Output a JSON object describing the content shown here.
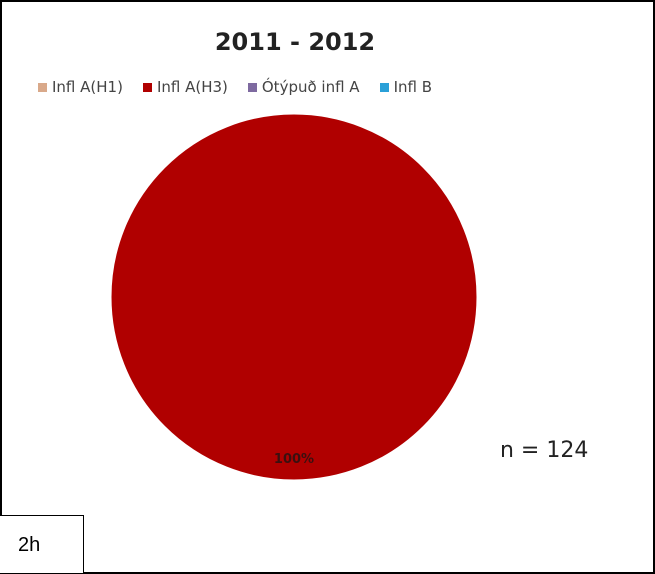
{
  "chart_data": {
    "type": "pie",
    "title": "2011 - 2012",
    "categories": [
      "Infl A(H1)",
      "Infl A(H3)",
      "Ótýpuð infl A",
      "Infl B"
    ],
    "values": [
      0,
      100,
      0,
      0
    ],
    "colors": [
      "#d9a98a",
      "#b00000",
      "#7e6aa0",
      "#2aa0d8"
    ],
    "data_labels": [
      "",
      "100%",
      "",
      ""
    ],
    "legend_position": "top"
  },
  "annotation": "n = 124",
  "panel_tag": "2h"
}
